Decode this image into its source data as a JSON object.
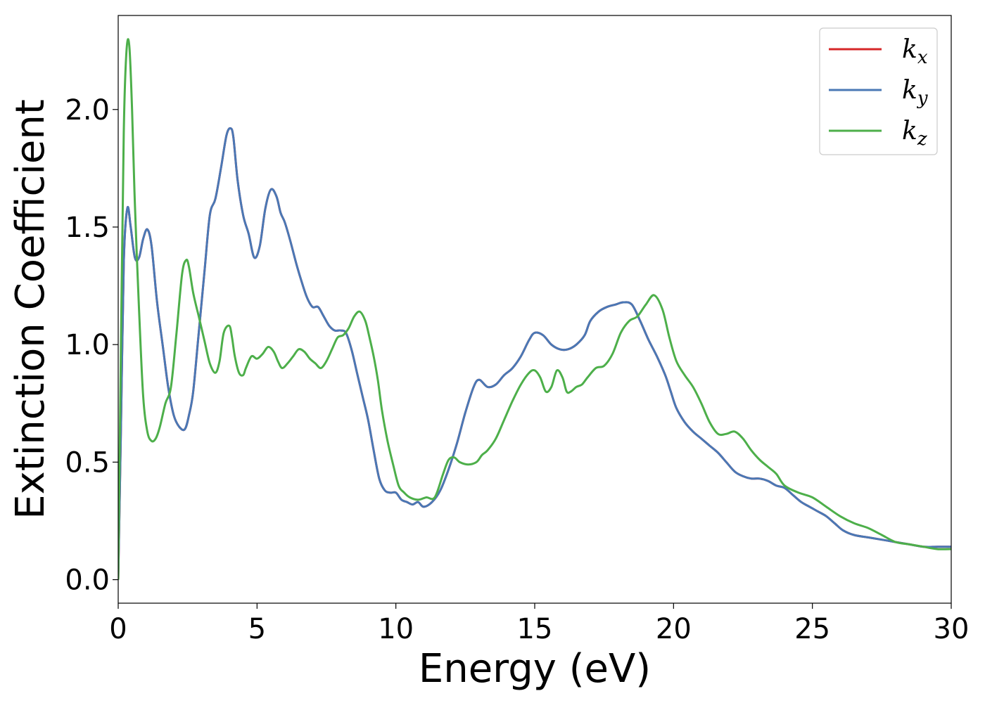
{
  "chart_data": {
    "type": "line",
    "title": "",
    "xlabel": "Energy (eV)",
    "ylabel": "Extinction Coefficient",
    "xlim": [
      0,
      30
    ],
    "ylim": [
      -0.1,
      2.4
    ],
    "xticks": [
      "0",
      "5",
      "10",
      "15",
      "20",
      "25",
      "30"
    ],
    "yticks": [
      "0.0",
      "0.5",
      "1.0",
      "1.5",
      "2.0"
    ],
    "grid": false,
    "legend_position": "top-right",
    "legend": [
      {
        "base": "k",
        "sub": "x",
        "color": "#d62728"
      },
      {
        "base": "k",
        "sub": "y",
        "color": "#4a78b5"
      },
      {
        "base": "k",
        "sub": "z",
        "color": "#4daf4a"
      }
    ],
    "series": [
      {
        "name": "k_x",
        "color": "#d62728",
        "x": [
          0,
          0.1,
          0.2,
          0.33,
          0.45,
          0.6,
          0.75,
          0.9,
          1.05,
          1.2,
          1.4,
          1.6,
          1.8,
          2.0,
          2.2,
          2.4,
          2.55,
          2.7,
          2.9,
          3.1,
          3.3,
          3.5,
          3.7,
          3.9,
          4.05,
          4.15,
          4.3,
          4.5,
          4.7,
          4.9,
          5.1,
          5.3,
          5.5,
          5.7,
          5.85,
          6.0,
          6.2,
          6.4,
          6.6,
          6.8,
          7.0,
          7.2,
          7.4,
          7.6,
          7.8,
          8.0,
          8.2,
          8.4,
          8.6,
          8.8,
          9.0,
          9.2,
          9.4,
          9.6,
          9.8,
          10.0,
          10.2,
          10.4,
          10.6,
          10.8,
          11.0,
          11.3,
          11.6,
          11.9,
          12.2,
          12.5,
          12.8,
          13.0,
          13.3,
          13.6,
          13.9,
          14.2,
          14.5,
          14.8,
          15.0,
          15.3,
          15.6,
          15.9,
          16.2,
          16.5,
          16.8,
          17.0,
          17.3,
          17.6,
          17.9,
          18.2,
          18.5,
          18.8,
          19.1,
          19.4,
          19.7,
          19.9,
          20.1,
          20.4,
          20.7,
          21.0,
          21.3,
          21.6,
          21.9,
          22.2,
          22.5,
          22.8,
          23.1,
          23.4,
          23.7,
          24.0,
          24.3,
          24.6,
          24.9,
          25.2,
          25.5,
          25.8,
          26.1,
          26.5,
          27.0,
          27.5,
          28.0,
          28.5,
          29.0,
          29.5,
          30.0
        ],
        "y": [
          0.0,
          0.65,
          1.35,
          1.58,
          1.5,
          1.37,
          1.37,
          1.45,
          1.49,
          1.42,
          1.18,
          1.0,
          0.82,
          0.7,
          0.65,
          0.64,
          0.7,
          0.8,
          1.05,
          1.3,
          1.55,
          1.62,
          1.75,
          1.89,
          1.92,
          1.88,
          1.7,
          1.55,
          1.47,
          1.37,
          1.42,
          1.58,
          1.66,
          1.63,
          1.56,
          1.52,
          1.44,
          1.35,
          1.27,
          1.2,
          1.16,
          1.16,
          1.12,
          1.08,
          1.06,
          1.06,
          1.05,
          0.98,
          0.88,
          0.78,
          0.68,
          0.55,
          0.43,
          0.38,
          0.37,
          0.37,
          0.34,
          0.33,
          0.32,
          0.33,
          0.31,
          0.33,
          0.38,
          0.47,
          0.58,
          0.71,
          0.82,
          0.85,
          0.82,
          0.83,
          0.87,
          0.9,
          0.95,
          1.02,
          1.05,
          1.04,
          1.0,
          0.98,
          0.98,
          1.0,
          1.04,
          1.1,
          1.14,
          1.16,
          1.17,
          1.18,
          1.17,
          1.1,
          1.02,
          0.95,
          0.87,
          0.8,
          0.73,
          0.67,
          0.63,
          0.6,
          0.57,
          0.54,
          0.5,
          0.46,
          0.44,
          0.43,
          0.43,
          0.42,
          0.4,
          0.39,
          0.36,
          0.33,
          0.31,
          0.29,
          0.27,
          0.24,
          0.21,
          0.19,
          0.18,
          0.17,
          0.16,
          0.15,
          0.14,
          0.14,
          0.14
        ]
      },
      {
        "name": "k_y",
        "color": "#4a78b5",
        "x": [
          0,
          0.1,
          0.2,
          0.33,
          0.45,
          0.6,
          0.75,
          0.9,
          1.05,
          1.2,
          1.4,
          1.6,
          1.8,
          2.0,
          2.2,
          2.4,
          2.55,
          2.7,
          2.9,
          3.1,
          3.3,
          3.5,
          3.7,
          3.9,
          4.05,
          4.15,
          4.3,
          4.5,
          4.7,
          4.9,
          5.1,
          5.3,
          5.5,
          5.7,
          5.85,
          6.0,
          6.2,
          6.4,
          6.6,
          6.8,
          7.0,
          7.2,
          7.4,
          7.6,
          7.8,
          8.0,
          8.2,
          8.4,
          8.6,
          8.8,
          9.0,
          9.2,
          9.4,
          9.6,
          9.8,
          10.0,
          10.2,
          10.4,
          10.6,
          10.8,
          11.0,
          11.3,
          11.6,
          11.9,
          12.2,
          12.5,
          12.8,
          13.0,
          13.3,
          13.6,
          13.9,
          14.2,
          14.5,
          14.8,
          15.0,
          15.3,
          15.6,
          15.9,
          16.2,
          16.5,
          16.8,
          17.0,
          17.3,
          17.6,
          17.9,
          18.2,
          18.5,
          18.8,
          19.1,
          19.4,
          19.7,
          19.9,
          20.1,
          20.4,
          20.7,
          21.0,
          21.3,
          21.6,
          21.9,
          22.2,
          22.5,
          22.8,
          23.1,
          23.4,
          23.7,
          24.0,
          24.3,
          24.6,
          24.9,
          25.2,
          25.5,
          25.8,
          26.1,
          26.5,
          27.0,
          27.5,
          28.0,
          28.5,
          29.0,
          29.5,
          30.0
        ],
        "y": [
          0.0,
          0.65,
          1.35,
          1.58,
          1.5,
          1.37,
          1.37,
          1.45,
          1.49,
          1.42,
          1.18,
          1.0,
          0.82,
          0.7,
          0.65,
          0.64,
          0.7,
          0.8,
          1.05,
          1.3,
          1.55,
          1.62,
          1.75,
          1.89,
          1.92,
          1.88,
          1.7,
          1.55,
          1.47,
          1.37,
          1.42,
          1.58,
          1.66,
          1.63,
          1.56,
          1.52,
          1.44,
          1.35,
          1.27,
          1.2,
          1.16,
          1.16,
          1.12,
          1.08,
          1.06,
          1.06,
          1.05,
          0.98,
          0.88,
          0.78,
          0.68,
          0.55,
          0.43,
          0.38,
          0.37,
          0.37,
          0.34,
          0.33,
          0.32,
          0.33,
          0.31,
          0.33,
          0.38,
          0.47,
          0.58,
          0.71,
          0.82,
          0.85,
          0.82,
          0.83,
          0.87,
          0.9,
          0.95,
          1.02,
          1.05,
          1.04,
          1.0,
          0.98,
          0.98,
          1.0,
          1.04,
          1.1,
          1.14,
          1.16,
          1.17,
          1.18,
          1.17,
          1.1,
          1.02,
          0.95,
          0.87,
          0.8,
          0.73,
          0.67,
          0.63,
          0.6,
          0.57,
          0.54,
          0.5,
          0.46,
          0.44,
          0.43,
          0.43,
          0.42,
          0.4,
          0.39,
          0.36,
          0.33,
          0.31,
          0.29,
          0.27,
          0.24,
          0.21,
          0.19,
          0.18,
          0.17,
          0.16,
          0.15,
          0.14,
          0.14,
          0.14
        ]
      },
      {
        "name": "k_z",
        "color": "#4daf4a",
        "x": [
          0,
          0.1,
          0.2,
          0.3,
          0.4,
          0.5,
          0.6,
          0.75,
          0.9,
          1.05,
          1.2,
          1.35,
          1.5,
          1.7,
          1.9,
          2.1,
          2.3,
          2.45,
          2.55,
          2.7,
          2.9,
          3.1,
          3.3,
          3.5,
          3.65,
          3.8,
          4.0,
          4.1,
          4.2,
          4.35,
          4.5,
          4.6,
          4.8,
          5.0,
          5.2,
          5.4,
          5.6,
          5.75,
          5.9,
          6.1,
          6.3,
          6.5,
          6.7,
          6.9,
          7.1,
          7.3,
          7.5,
          7.7,
          7.9,
          8.1,
          8.3,
          8.5,
          8.7,
          8.9,
          9.05,
          9.2,
          9.35,
          9.5,
          9.7,
          9.9,
          10.1,
          10.3,
          10.5,
          10.8,
          11.1,
          11.4,
          11.7,
          11.9,
          12.1,
          12.3,
          12.6,
          12.9,
          13.1,
          13.3,
          13.6,
          13.9,
          14.2,
          14.5,
          14.8,
          15.0,
          15.2,
          15.4,
          15.6,
          15.8,
          16.0,
          16.15,
          16.3,
          16.5,
          16.7,
          16.9,
          17.2,
          17.5,
          17.8,
          18.1,
          18.4,
          18.7,
          19.0,
          19.3,
          19.6,
          19.85,
          20.1,
          20.4,
          20.7,
          21.0,
          21.3,
          21.6,
          21.9,
          22.2,
          22.5,
          22.8,
          23.1,
          23.4,
          23.7,
          24.0,
          24.5,
          25.0,
          25.5,
          26.0,
          26.5,
          27.0,
          27.5,
          28.0,
          28.5,
          29.0,
          29.5,
          30.0
        ],
        "y": [
          0.0,
          1.0,
          1.9,
          2.25,
          2.27,
          2.0,
          1.6,
          1.15,
          0.78,
          0.63,
          0.59,
          0.6,
          0.65,
          0.75,
          0.82,
          1.05,
          1.3,
          1.36,
          1.33,
          1.22,
          1.12,
          1.02,
          0.92,
          0.88,
          0.93,
          1.05,
          1.08,
          1.03,
          0.95,
          0.88,
          0.87,
          0.9,
          0.95,
          0.94,
          0.96,
          0.99,
          0.97,
          0.93,
          0.9,
          0.92,
          0.95,
          0.98,
          0.97,
          0.94,
          0.92,
          0.9,
          0.93,
          0.98,
          1.03,
          1.04,
          1.07,
          1.12,
          1.14,
          1.1,
          1.03,
          0.95,
          0.85,
          0.72,
          0.59,
          0.49,
          0.4,
          0.37,
          0.35,
          0.34,
          0.35,
          0.35,
          0.45,
          0.51,
          0.52,
          0.5,
          0.49,
          0.5,
          0.53,
          0.55,
          0.6,
          0.68,
          0.76,
          0.83,
          0.88,
          0.89,
          0.86,
          0.8,
          0.82,
          0.89,
          0.86,
          0.8,
          0.8,
          0.82,
          0.83,
          0.86,
          0.9,
          0.91,
          0.96,
          1.05,
          1.1,
          1.12,
          1.17,
          1.21,
          1.15,
          1.03,
          0.93,
          0.87,
          0.82,
          0.75,
          0.67,
          0.62,
          0.62,
          0.63,
          0.6,
          0.55,
          0.51,
          0.48,
          0.45,
          0.4,
          0.37,
          0.35,
          0.31,
          0.27,
          0.24,
          0.22,
          0.19,
          0.16,
          0.15,
          0.14,
          0.13,
          0.13
        ]
      }
    ]
  }
}
